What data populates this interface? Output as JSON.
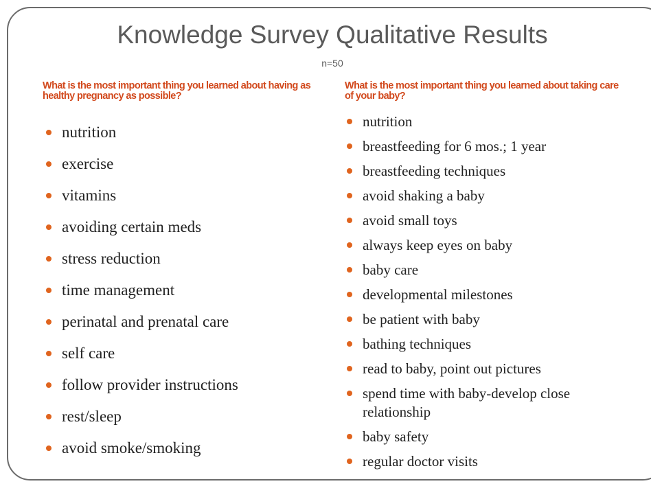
{
  "header": {
    "title": "Knowledge Survey Qualitative Results",
    "subtitle": "n=50"
  },
  "columns": [
    {
      "question": "What is the most important thing you learned about having as healthy pregnancy as possible?",
      "items": [
        "nutrition",
        "exercise",
        "vitamins",
        "avoiding certain meds",
        "stress reduction",
        "time management",
        "perinatal and prenatal care",
        "self care",
        "follow provider instructions",
        "rest/sleep",
        "avoid smoke/smoking"
      ]
    },
    {
      "question": "What is the most important thing you learned about taking care of your baby?",
      "items": [
        "nutrition",
        "breastfeeding for 6 mos.; 1 year",
        "breastfeeding techniques",
        "avoid shaking a baby",
        "avoid small toys",
        "always keep eyes on baby",
        "baby care",
        "developmental milestones",
        "be patient with baby",
        "bathing techniques",
        "read to baby, point out pictures",
        "spend time with baby-develop close relationship",
        "baby safety",
        "regular doctor visits"
      ]
    }
  ]
}
